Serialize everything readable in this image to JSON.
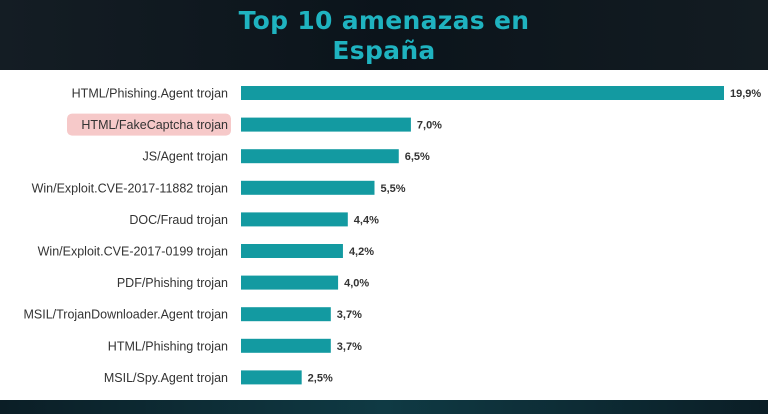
{
  "header": {
    "title_line1": "Top 10 amenazas en",
    "title_line2": "España"
  },
  "chart_data": {
    "type": "bar",
    "orientation": "horizontal",
    "title": "Top 10 amenazas en España",
    "categories": [
      "HTML/Phishing.Agent trojan",
      "HTML/FakeCaptcha trojan",
      "JS/Agent trojan",
      "Win/Exploit.CVE-2017-11882 trojan",
      "DOC/Fraud trojan",
      "Win/Exploit.CVE-2017-0199 trojan",
      "PDF/Phishing trojan",
      "MSIL/TrojanDownloader.Agent trojan",
      "HTML/Phishing trojan",
      "MSIL/Spy.Agent trojan"
    ],
    "values": [
      19.9,
      7.0,
      6.5,
      5.5,
      4.4,
      4.2,
      4.0,
      3.7,
      3.7,
      2.5
    ],
    "value_labels": [
      "19,9%",
      "7,0%",
      "6,5%",
      "5,5%",
      "4,4%",
      "4,2%",
      "4,0%",
      "3,7%",
      "3,7%",
      "2,5%"
    ],
    "highlighted_category": "HTML/FakeCaptcha trojan",
    "xlim": [
      0,
      19.9
    ],
    "grid": false,
    "legend": "none",
    "colors": {
      "bar": "#139aa1",
      "highlight_bg": "#f6c9c9",
      "title": "#1fb3c0"
    }
  }
}
